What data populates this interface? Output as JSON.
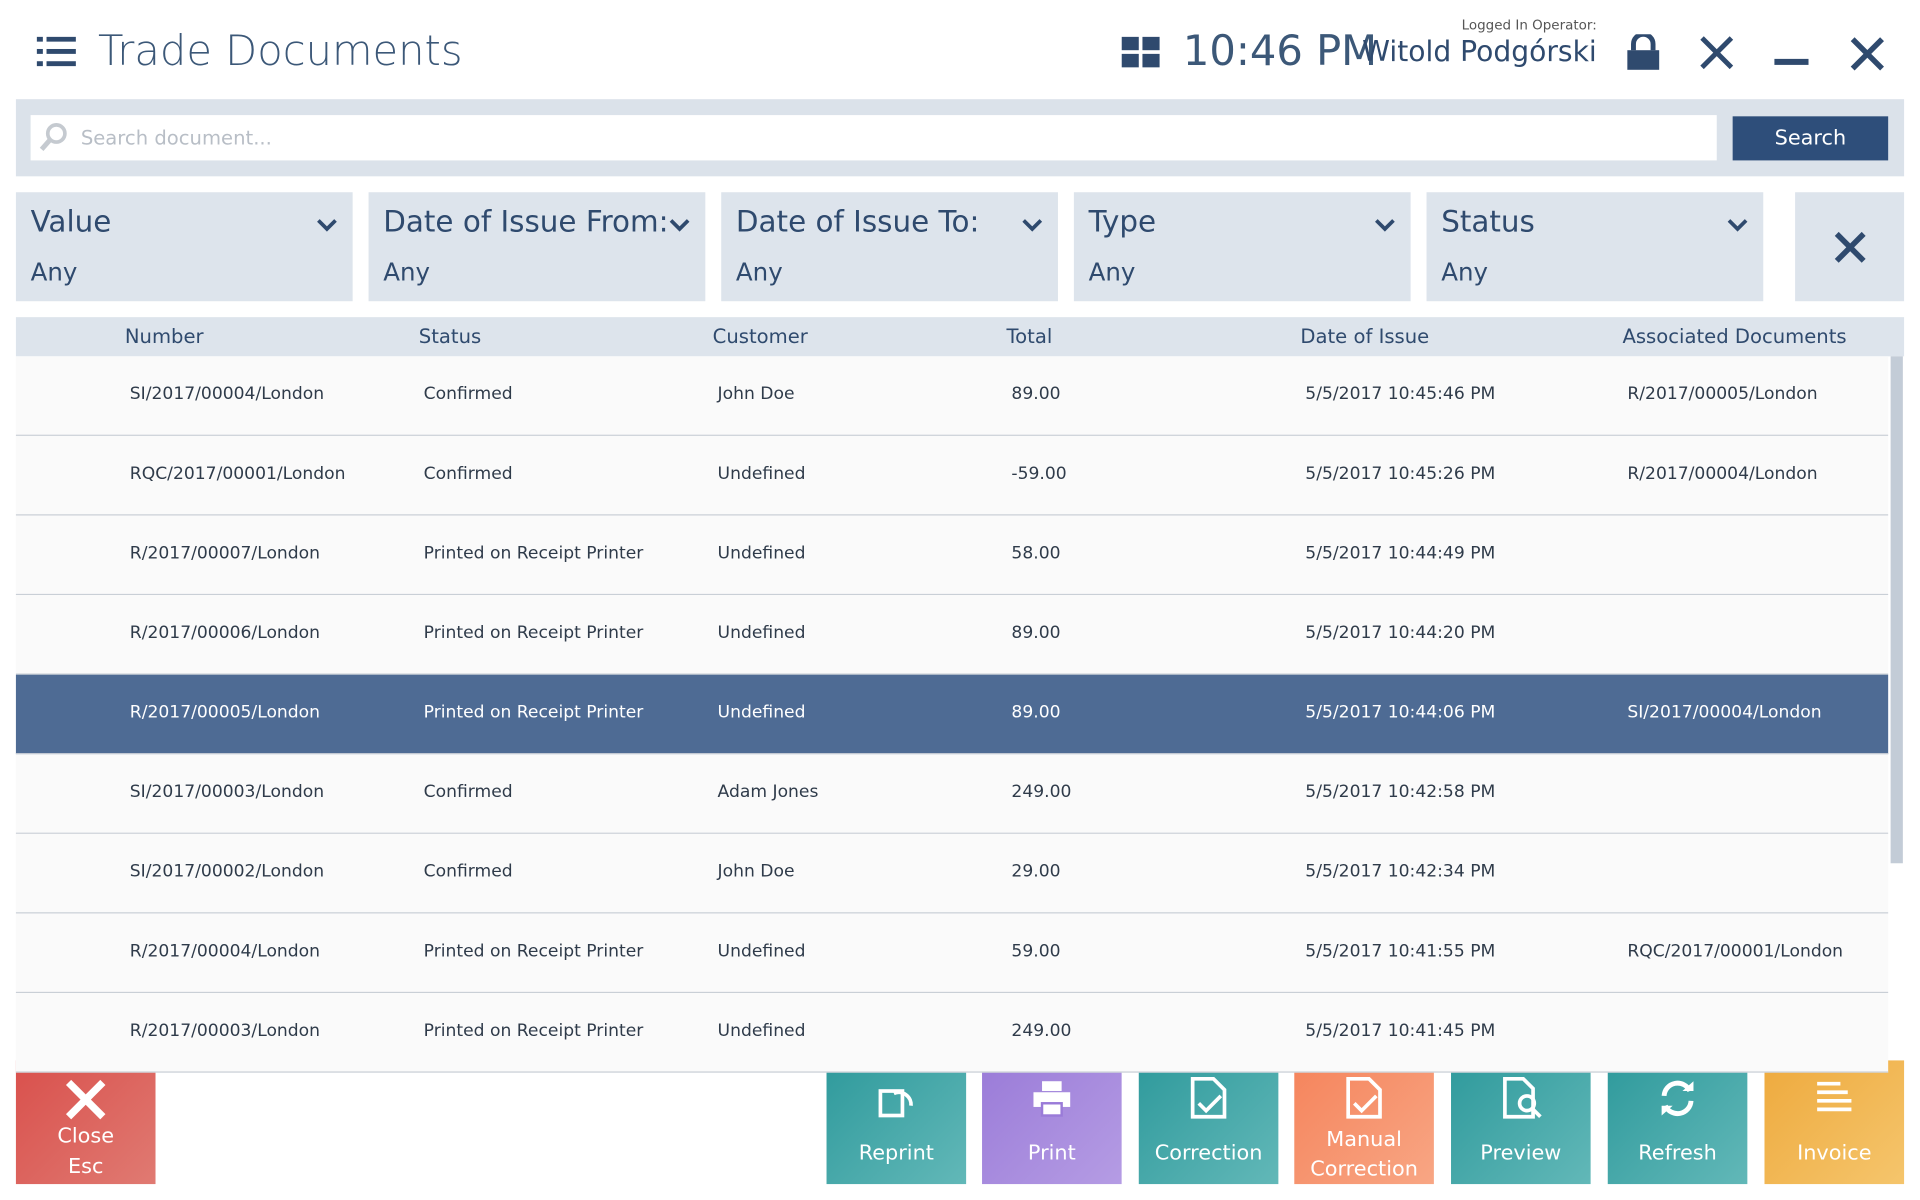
{
  "header": {
    "title": "Trade Documents",
    "time": "10:46 PM",
    "operator_label": "Logged In Operator:",
    "operator_name": "Witold Podgórski"
  },
  "search": {
    "placeholder": "Search document...",
    "button": "Search"
  },
  "filters": [
    {
      "label": "Value",
      "value": "Any"
    },
    {
      "label": "Date of Issue From:",
      "value": "Any"
    },
    {
      "label": "Date of Issue To:",
      "value": "Any"
    },
    {
      "label": "Type",
      "value": "Any"
    },
    {
      "label": "Status",
      "value": "Any"
    }
  ],
  "table": {
    "columns": [
      "Number",
      "Status",
      "Customer",
      "Total",
      "Date of Issue",
      "Associated Documents"
    ],
    "selected_row": 4,
    "rows": [
      [
        "SI/2017/00004/London",
        "Confirmed",
        "John Doe",
        "89.00",
        "5/5/2017 10:45:46 PM",
        "R/2017/00005/London"
      ],
      [
        "RQC/2017/00001/London",
        "Confirmed",
        "Undefined",
        "-59.00",
        "5/5/2017 10:45:26 PM",
        "R/2017/00004/London"
      ],
      [
        "R/2017/00007/London",
        "Printed on Receipt Printer",
        "Undefined",
        "58.00",
        "5/5/2017 10:44:49 PM",
        null
      ],
      [
        "R/2017/00006/London",
        "Printed on Receipt Printer",
        "Undefined",
        "89.00",
        "5/5/2017 10:44:20 PM",
        null
      ],
      [
        "R/2017/00005/London",
        "Printed on Receipt Printer",
        "Undefined",
        "89.00",
        "5/5/2017 10:44:06 PM",
        "SI/2017/00004/London"
      ],
      [
        "SI/2017/00003/London",
        "Confirmed",
        "Adam Jones",
        "249.00",
        "5/5/2017 10:42:58 PM",
        null
      ],
      [
        "SI/2017/00002/London",
        "Confirmed",
        "John Doe",
        "29.00",
        "5/5/2017 10:42:34 PM",
        null
      ],
      [
        "R/2017/00004/London",
        "Printed on Receipt Printer",
        "Undefined",
        "59.00",
        "5/5/2017 10:41:55 PM",
        "RQC/2017/00001/London"
      ],
      [
        "R/2017/00003/London",
        "Printed on Receipt Printer",
        "Undefined",
        "249.00",
        "5/5/2017 10:41:45 PM",
        null
      ]
    ]
  },
  "buttons": {
    "close": [
      "Close",
      "Esc"
    ],
    "reprint": "Reprint",
    "print": "Print",
    "correction": "Correction",
    "manual_correction": "Manual Correction",
    "preview": "Preview",
    "refresh": "Refresh",
    "invoice": "Invoice"
  }
}
